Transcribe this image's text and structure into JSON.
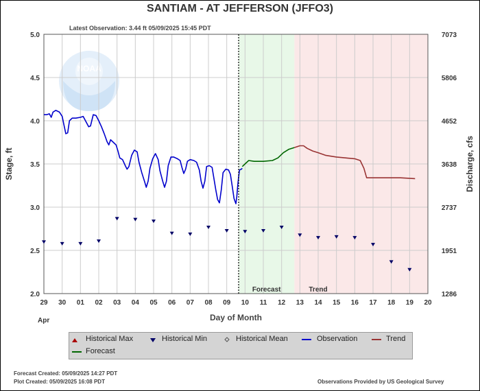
{
  "title": "SANTIAM - AT JEFFERSON  (JFFO3)",
  "latest_observation": "Latest Observation: 3.44 ft 05/09/2025 15:45 PDT",
  "y_label_left": "Stage, ft",
  "y_label_right": "Discharge, cfs",
  "x_label": "Day of Month",
  "month_label": "Apr",
  "forecast_label": "Forecast",
  "trend_label": "Trend",
  "legend": {
    "historical_max": "Historical Max",
    "historical_min": "Historical Min",
    "historical_mean": "Historical Mean",
    "observation": "Observation",
    "trend": "Trend",
    "forecast": "Forecast"
  },
  "footer": {
    "forecast_created": "Forecast Created: 05/09/2025 14:27 PDT",
    "plot_created": "Plot Created: 05/09/2025 16:08 PDT",
    "provider": "Observations Provided by US Geological Survey"
  },
  "chart_data": {
    "type": "line",
    "x_tick_labels": [
      "29",
      "30",
      "01",
      "02",
      "03",
      "04",
      "05",
      "06",
      "07",
      "08",
      "09",
      "10",
      "11",
      "12",
      "13",
      "14",
      "15",
      "16",
      "17",
      "18",
      "19",
      "20"
    ],
    "xlim": [
      0,
      21
    ],
    "ylim": [
      2.0,
      5.0
    ],
    "y_ticks": [
      "2.0",
      "2.5",
      "3.0",
      "3.5",
      "4.0",
      "4.5",
      "5.0"
    ],
    "y2_ticks": [
      "1286",
      "1951",
      "2737",
      "3638",
      "4652",
      "5806",
      "7073"
    ],
    "current_time_x": 10.65,
    "forecast_region": [
      10.65,
      13.7
    ],
    "trend_region": [
      13.7,
      21
    ],
    "grid": true,
    "colors": {
      "observation": "#0000cc",
      "forecast": "#006600",
      "trend": "#993333",
      "forecast_fill": "#e8f8e8",
      "trend_fill": "#fbe8e8",
      "min_marker": "#000066",
      "max_marker": "#aa0000"
    },
    "series": [
      {
        "name": "Observation",
        "points": [
          [
            0,
            4.07
          ],
          [
            0.15,
            4.07
          ],
          [
            0.3,
            4.08
          ],
          [
            0.4,
            4.04
          ],
          [
            0.5,
            4.1
          ],
          [
            0.65,
            4.12
          ],
          [
            0.85,
            4.1
          ],
          [
            1.0,
            4.05
          ],
          [
            1.1,
            3.95
          ],
          [
            1.2,
            3.85
          ],
          [
            1.3,
            3.86
          ],
          [
            1.4,
            4.0
          ],
          [
            1.55,
            4.03
          ],
          [
            1.75,
            4.03
          ],
          [
            2.0,
            4.04
          ],
          [
            2.15,
            4.05
          ],
          [
            2.3,
            3.99
          ],
          [
            2.45,
            3.93
          ],
          [
            2.55,
            3.94
          ],
          [
            2.7,
            4.07
          ],
          [
            2.85,
            4.06
          ],
          [
            3.0,
            4.0
          ],
          [
            3.15,
            3.93
          ],
          [
            3.3,
            3.85
          ],
          [
            3.45,
            3.76
          ],
          [
            3.55,
            3.72
          ],
          [
            3.65,
            3.78
          ],
          [
            3.8,
            3.75
          ],
          [
            3.95,
            3.72
          ],
          [
            4.05,
            3.65
          ],
          [
            4.15,
            3.57
          ],
          [
            4.3,
            3.55
          ],
          [
            4.45,
            3.48
          ],
          [
            4.55,
            3.44
          ],
          [
            4.65,
            3.47
          ],
          [
            4.8,
            3.6
          ],
          [
            4.95,
            3.66
          ],
          [
            5.1,
            3.64
          ],
          [
            5.2,
            3.52
          ],
          [
            5.35,
            3.4
          ],
          [
            5.5,
            3.3
          ],
          [
            5.6,
            3.23
          ],
          [
            5.7,
            3.3
          ],
          [
            5.8,
            3.45
          ],
          [
            5.95,
            3.56
          ],
          [
            6.1,
            3.62
          ],
          [
            6.25,
            3.55
          ],
          [
            6.35,
            3.42
          ],
          [
            6.5,
            3.3
          ],
          [
            6.6,
            3.23
          ],
          [
            6.7,
            3.3
          ],
          [
            6.8,
            3.48
          ],
          [
            6.95,
            3.58
          ],
          [
            7.1,
            3.58
          ],
          [
            7.3,
            3.56
          ],
          [
            7.45,
            3.54
          ],
          [
            7.55,
            3.46
          ],
          [
            7.65,
            3.39
          ],
          [
            7.75,
            3.44
          ],
          [
            7.85,
            3.53
          ],
          [
            8.0,
            3.55
          ],
          [
            8.2,
            3.54
          ],
          [
            8.35,
            3.52
          ],
          [
            8.5,
            3.43
          ],
          [
            8.6,
            3.3
          ],
          [
            8.7,
            3.22
          ],
          [
            8.8,
            3.3
          ],
          [
            8.9,
            3.47
          ],
          [
            9.05,
            3.48
          ],
          [
            9.2,
            3.46
          ],
          [
            9.3,
            3.33
          ],
          [
            9.4,
            3.2
          ],
          [
            9.5,
            3.09
          ],
          [
            9.6,
            3.05
          ],
          [
            9.7,
            3.2
          ],
          [
            9.8,
            3.4
          ],
          [
            9.95,
            3.44
          ],
          [
            10.1,
            3.43
          ],
          [
            10.2,
            3.38
          ],
          [
            10.3,
            3.24
          ],
          [
            10.4,
            3.1
          ],
          [
            10.5,
            3.04
          ],
          [
            10.55,
            3.12
          ],
          [
            10.6,
            3.25
          ],
          [
            10.65,
            3.35
          ],
          [
            10.7,
            3.43
          ],
          [
            10.8,
            3.44
          ],
          [
            10.85,
            3.45
          ]
        ]
      },
      {
        "name": "Forecast",
        "points": [
          [
            10.85,
            3.47
          ],
          [
            11.0,
            3.5
          ],
          [
            11.2,
            3.54
          ],
          [
            11.5,
            3.53
          ],
          [
            12.0,
            3.53
          ],
          [
            12.5,
            3.54
          ],
          [
            12.8,
            3.57
          ],
          [
            13.1,
            3.63
          ],
          [
            13.4,
            3.67
          ],
          [
            13.7,
            3.69
          ]
        ]
      },
      {
        "name": "Trend",
        "points": [
          [
            13.7,
            3.69
          ],
          [
            14.0,
            3.71
          ],
          [
            14.2,
            3.71
          ],
          [
            14.4,
            3.68
          ],
          [
            14.7,
            3.65
          ],
          [
            15.0,
            3.63
          ],
          [
            15.4,
            3.6
          ],
          [
            16.0,
            3.58
          ],
          [
            16.5,
            3.57
          ],
          [
            17.0,
            3.56
          ],
          [
            17.3,
            3.54
          ],
          [
            17.5,
            3.45
          ],
          [
            17.65,
            3.34
          ],
          [
            18.2,
            3.34
          ],
          [
            19.0,
            3.34
          ],
          [
            19.5,
            3.34
          ],
          [
            20.3,
            3.33
          ]
        ]
      }
    ],
    "historical_min": [
      [
        0,
        2.6
      ],
      [
        1,
        2.58
      ],
      [
        2,
        2.58
      ],
      [
        3,
        2.61
      ],
      [
        4,
        2.87
      ],
      [
        5,
        2.86
      ],
      [
        6,
        2.84
      ],
      [
        7,
        2.7
      ],
      [
        8,
        2.69
      ],
      [
        9,
        2.77
      ],
      [
        10,
        2.73
      ],
      [
        11,
        2.72
      ],
      [
        12,
        2.73
      ],
      [
        13,
        2.77
      ],
      [
        14,
        2.68
      ],
      [
        15,
        2.65
      ],
      [
        16,
        2.66
      ],
      [
        17,
        2.65
      ],
      [
        18,
        2.57
      ],
      [
        19,
        2.37
      ],
      [
        20,
        2.28
      ]
    ]
  }
}
